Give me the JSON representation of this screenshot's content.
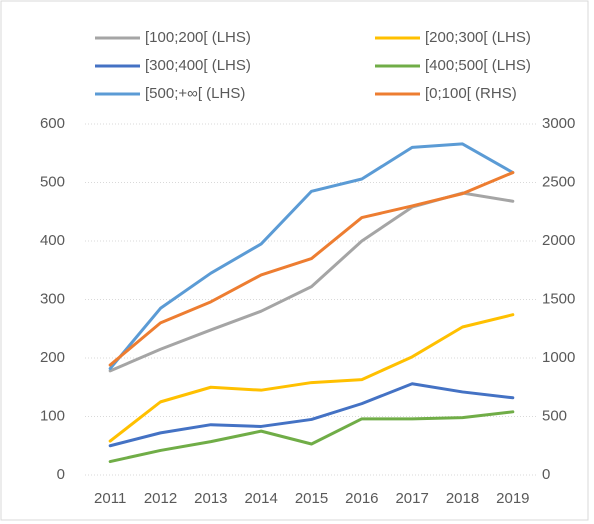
{
  "chart_data": {
    "type": "line",
    "categories": [
      "2011",
      "2012",
      "2013",
      "2014",
      "2015",
      "2016",
      "2017",
      "2018",
      "2019"
    ],
    "series": [
      {
        "name": "[100;200[ (LHS)",
        "color": "#a5a5a5",
        "axis": "y",
        "values": [
          178,
          215,
          248,
          280,
          322,
          400,
          458,
          482,
          468
        ]
      },
      {
        "name": "[200;300[ (LHS)",
        "color": "#ffc000",
        "axis": "y",
        "values": [
          58,
          125,
          150,
          145,
          158,
          163,
          202,
          253,
          274
        ]
      },
      {
        "name": "[300;400[ (LHS)",
        "color": "#4472c4",
        "axis": "y",
        "values": [
          50,
          72,
          86,
          83,
          95,
          122,
          156,
          142,
          132
        ]
      },
      {
        "name": "[400;500[ (LHS)",
        "color": "#70ad47",
        "axis": "y",
        "values": [
          23,
          42,
          57,
          75,
          53,
          96,
          96,
          98,
          108
        ]
      },
      {
        "name": "[500;+∞[ (LHS)",
        "color": "#5b9bd5",
        "axis": "y",
        "values": [
          182,
          285,
          345,
          395,
          485,
          506,
          560,
          566,
          517
        ]
      },
      {
        "name": "[0;100[ (RHS)",
        "color": "#ed7d31",
        "axis": "y2",
        "values": [
          940,
          1300,
          1480,
          1710,
          1850,
          2200,
          2300,
          2405,
          2585
        ]
      }
    ],
    "ylim": [
      0,
      600
    ],
    "yticks": [
      0,
      100,
      200,
      300,
      400,
      500,
      600
    ],
    "y2lim": [
      0,
      3000
    ],
    "y2ticks": [
      0,
      500,
      1000,
      1500,
      2000,
      2500,
      3000
    ],
    "grid": true,
    "legend": "top"
  }
}
